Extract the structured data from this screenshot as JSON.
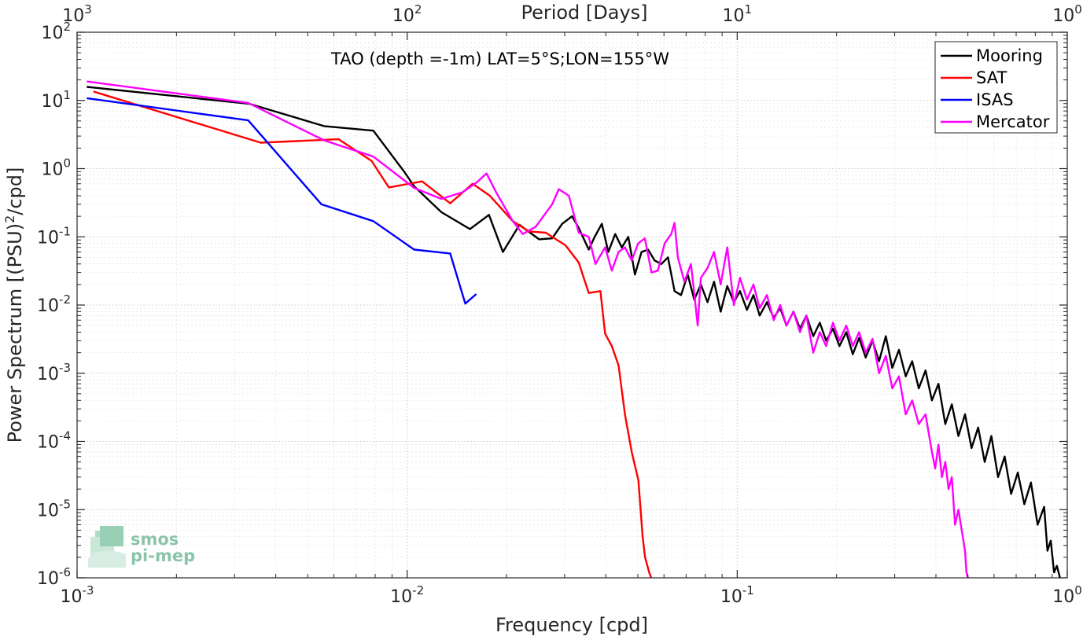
{
  "chart_data": {
    "type": "line",
    "title": "TAO (depth =-1m) LAT=5°S;LON=155°W",
    "xlabel": "Frequency [cpd]",
    "ylabel_prefix": "Power Spectrum [(PSU)",
    "ylabel_sup": "2",
    "ylabel_suffix": "/cpd]",
    "x2label": "Period [Days]",
    "xscale": "log",
    "yscale": "log",
    "xlim": [
      0.001,
      1
    ],
    "ylim": [
      1e-06,
      100
    ],
    "grid": true,
    "legend_position": "top-right",
    "x_ticks": [
      {
        "value": 0.001,
        "base": "10",
        "exp": "-3"
      },
      {
        "value": 0.01,
        "base": "10",
        "exp": "-2"
      },
      {
        "value": 0.1,
        "base": "10",
        "exp": "-1"
      },
      {
        "value": 1,
        "base": "10",
        "exp": "0"
      }
    ],
    "x2_ticks": [
      {
        "value": 0.001,
        "base": "10",
        "exp": "3"
      },
      {
        "value": 0.01,
        "base": "10",
        "exp": "2"
      },
      {
        "value": 0.1,
        "base": "10",
        "exp": "1"
      },
      {
        "value": 1,
        "base": "10",
        "exp": "0"
      }
    ],
    "y_ticks": [
      {
        "value": 1e-06,
        "base": "10",
        "exp": "-6"
      },
      {
        "value": 1e-05,
        "base": "10",
        "exp": "-5"
      },
      {
        "value": 0.0001,
        "base": "10",
        "exp": "-4"
      },
      {
        "value": 0.001,
        "base": "10",
        "exp": "-3"
      },
      {
        "value": 0.01,
        "base": "10",
        "exp": "-2"
      },
      {
        "value": 0.1,
        "base": "10",
        "exp": "-1"
      },
      {
        "value": 1,
        "base": "10",
        "exp": "0"
      },
      {
        "value": 10,
        "base": "10",
        "exp": "1"
      },
      {
        "value": 100,
        "base": "10",
        "exp": "2"
      }
    ],
    "series": [
      {
        "name": "Mooring",
        "color": "#000000",
        "points": [
          [
            0.00107,
            15.8
          ],
          [
            0.00333,
            8.9
          ],
          [
            0.0056,
            4.2
          ],
          [
            0.0079,
            3.6
          ],
          [
            0.0098,
            0.9
          ],
          [
            0.0105,
            0.55
          ],
          [
            0.0127,
            0.23
          ],
          [
            0.0155,
            0.13
          ],
          [
            0.0177,
            0.21
          ],
          [
            0.0195,
            0.06
          ],
          [
            0.0219,
            0.15
          ],
          [
            0.0251,
            0.092
          ],
          [
            0.0275,
            0.095
          ],
          [
            0.0295,
            0.155
          ],
          [
            0.0316,
            0.2
          ],
          [
            0.0331,
            0.135
          ],
          [
            0.0355,
            0.065
          ],
          [
            0.037,
            0.1
          ],
          [
            0.0389,
            0.155
          ],
          [
            0.0407,
            0.06
          ],
          [
            0.0427,
            0.11
          ],
          [
            0.0447,
            0.07
          ],
          [
            0.0468,
            0.1
          ],
          [
            0.049,
            0.028
          ],
          [
            0.0513,
            0.06
          ],
          [
            0.0537,
            0.065
          ],
          [
            0.0562,
            0.045
          ],
          [
            0.0589,
            0.04
          ],
          [
            0.0617,
            0.05
          ],
          [
            0.0646,
            0.016
          ],
          [
            0.0676,
            0.014
          ],
          [
            0.0708,
            0.028
          ],
          [
            0.0741,
            0.012
          ],
          [
            0.0776,
            0.02
          ],
          [
            0.0813,
            0.011
          ],
          [
            0.0851,
            0.022
          ],
          [
            0.0891,
            0.008
          ],
          [
            0.0933,
            0.019
          ],
          [
            0.0977,
            0.011
          ],
          [
            0.102,
            0.016
          ],
          [
            0.107,
            0.0085
          ],
          [
            0.112,
            0.014
          ],
          [
            0.117,
            0.007
          ],
          [
            0.123,
            0.011
          ],
          [
            0.129,
            0.0065
          ],
          [
            0.135,
            0.009
          ],
          [
            0.141,
            0.005
          ],
          [
            0.148,
            0.008
          ],
          [
            0.155,
            0.0045
          ],
          [
            0.162,
            0.007
          ],
          [
            0.17,
            0.0035
          ],
          [
            0.178,
            0.0055
          ],
          [
            0.186,
            0.003
          ],
          [
            0.195,
            0.0045
          ],
          [
            0.204,
            0.0025
          ],
          [
            0.214,
            0.004
          ],
          [
            0.224,
            0.0019
          ],
          [
            0.234,
            0.0033
          ],
          [
            0.245,
            0.0017
          ],
          [
            0.257,
            0.003
          ],
          [
            0.269,
            0.0015
          ],
          [
            0.282,
            0.0035
          ],
          [
            0.295,
            0.0012
          ],
          [
            0.309,
            0.0022
          ],
          [
            0.324,
            0.0009
          ],
          [
            0.339,
            0.0015
          ],
          [
            0.355,
            0.0006
          ],
          [
            0.372,
            0.0011
          ],
          [
            0.389,
            0.0004
          ],
          [
            0.407,
            0.0007
          ],
          [
            0.427,
            0.00018
          ],
          [
            0.447,
            0.00035
          ],
          [
            0.468,
            0.00012
          ],
          [
            0.49,
            0.00025
          ],
          [
            0.513,
            8e-05
          ],
          [
            0.537,
            0.00016
          ],
          [
            0.562,
            5e-05
          ],
          [
            0.589,
            0.00012
          ],
          [
            0.617,
            3e-05
          ],
          [
            0.646,
            6e-05
          ],
          [
            0.676,
            1.7e-05
          ],
          [
            0.708,
            3.5e-05
          ],
          [
            0.741,
            1.2e-05
          ],
          [
            0.776,
            2.5e-05
          ],
          [
            0.813,
            6e-06
          ],
          [
            0.851,
            1.1e-05
          ],
          [
            0.871,
            2.5e-06
          ],
          [
            0.891,
            3.5e-06
          ],
          [
            0.912,
            1.2e-06
          ],
          [
            0.93,
            1.5e-06
          ],
          [
            0.95,
            1e-06
          ]
        ]
      },
      {
        "name": "SAT",
        "color": "#ff0000",
        "points": [
          [
            0.00112,
            13.5
          ],
          [
            0.0036,
            2.4
          ],
          [
            0.0062,
            2.7
          ],
          [
            0.0078,
            1.3
          ],
          [
            0.0088,
            0.53
          ],
          [
            0.0111,
            0.65
          ],
          [
            0.0135,
            0.31
          ],
          [
            0.0158,
            0.6
          ],
          [
            0.0178,
            0.4
          ],
          [
            0.0209,
            0.17
          ],
          [
            0.0234,
            0.12
          ],
          [
            0.0263,
            0.115
          ],
          [
            0.0302,
            0.075
          ],
          [
            0.0331,
            0.042
          ],
          [
            0.0355,
            0.015
          ],
          [
            0.0385,
            0.016
          ],
          [
            0.0398,
            0.0038
          ],
          [
            0.0417,
            0.0025
          ],
          [
            0.0437,
            0.0013
          ],
          [
            0.0457,
            0.00025
          ],
          [
            0.0479,
            7e-05
          ],
          [
            0.0502,
            2.7e-05
          ],
          [
            0.0517,
            4e-06
          ],
          [
            0.0526,
            2e-06
          ],
          [
            0.0541,
            1.2e-06
          ],
          [
            0.0549,
            1e-06
          ]
        ]
      },
      {
        "name": "ISAS",
        "color": "#0000ff",
        "points": [
          [
            0.00107,
            10.8
          ],
          [
            0.0033,
            5.1
          ],
          [
            0.0055,
            0.3
          ],
          [
            0.0079,
            0.17
          ],
          [
            0.0105,
            0.065
          ],
          [
            0.0135,
            0.057
          ],
          [
            0.015,
            0.0105
          ],
          [
            0.0162,
            0.0145
          ]
        ]
      },
      {
        "name": "Mercator",
        "color": "#ff00ff",
        "points": [
          [
            0.00107,
            19
          ],
          [
            0.0033,
            9.2
          ],
          [
            0.0056,
            2.6
          ],
          [
            0.0079,
            1.5
          ],
          [
            0.0105,
            0.52
          ],
          [
            0.0127,
            0.36
          ],
          [
            0.0147,
            0.45
          ],
          [
            0.0162,
            0.62
          ],
          [
            0.0174,
            0.85
          ],
          [
            0.0186,
            0.45
          ],
          [
            0.0209,
            0.17
          ],
          [
            0.0224,
            0.11
          ],
          [
            0.0245,
            0.14
          ],
          [
            0.0275,
            0.3
          ],
          [
            0.0288,
            0.5
          ],
          [
            0.0309,
            0.4
          ],
          [
            0.0331,
            0.115
          ],
          [
            0.0355,
            0.1
          ],
          [
            0.0372,
            0.04
          ],
          [
            0.0398,
            0.07
          ],
          [
            0.0417,
            0.032
          ],
          [
            0.0437,
            0.06
          ],
          [
            0.0457,
            0.07
          ],
          [
            0.0479,
            0.045
          ],
          [
            0.0501,
            0.08
          ],
          [
            0.0525,
            0.095
          ],
          [
            0.055,
            0.03
          ],
          [
            0.0575,
            0.032
          ],
          [
            0.0603,
            0.08
          ],
          [
            0.0631,
            0.11
          ],
          [
            0.0646,
            0.16
          ],
          [
            0.0661,
            0.05
          ],
          [
            0.0692,
            0.022
          ],
          [
            0.0724,
            0.04
          ],
          [
            0.0741,
            0.015
          ],
          [
            0.0759,
            0.005
          ],
          [
            0.0776,
            0.025
          ],
          [
            0.0813,
            0.035
          ],
          [
            0.0851,
            0.06
          ],
          [
            0.0891,
            0.02
          ],
          [
            0.0933,
            0.07
          ],
          [
            0.0977,
            0.01
          ],
          [
            0.102,
            0.025
          ],
          [
            0.107,
            0.012
          ],
          [
            0.112,
            0.02
          ],
          [
            0.117,
            0.009
          ],
          [
            0.123,
            0.014
          ],
          [
            0.129,
            0.006
          ],
          [
            0.135,
            0.01
          ],
          [
            0.141,
            0.005
          ],
          [
            0.148,
            0.008
          ],
          [
            0.155,
            0.004
          ],
          [
            0.162,
            0.007
          ],
          [
            0.17,
            0.002
          ],
          [
            0.178,
            0.004
          ],
          [
            0.186,
            0.0025
          ],
          [
            0.195,
            0.0055
          ],
          [
            0.204,
            0.003
          ],
          [
            0.214,
            0.005
          ],
          [
            0.224,
            0.0025
          ],
          [
            0.234,
            0.004
          ],
          [
            0.245,
            0.002
          ],
          [
            0.257,
            0.0032
          ],
          [
            0.269,
            0.001
          ],
          [
            0.282,
            0.0018
          ],
          [
            0.295,
            0.0006
          ],
          [
            0.309,
            0.0009
          ],
          [
            0.324,
            0.00025
          ],
          [
            0.339,
            0.0004
          ],
          [
            0.355,
            0.00018
          ],
          [
            0.372,
            0.00025
          ],
          [
            0.389,
            7e-05
          ],
          [
            0.398,
            4e-05
          ],
          [
            0.407,
            9e-05
          ],
          [
            0.417,
            3e-05
          ],
          [
            0.427,
            5e-05
          ],
          [
            0.437,
            2e-05
          ],
          [
            0.447,
            3e-05
          ],
          [
            0.457,
            6e-06
          ],
          [
            0.468,
            1e-05
          ],
          [
            0.479,
            5e-06
          ],
          [
            0.49,
            2.5e-06
          ],
          [
            0.495,
            1.2e-06
          ],
          [
            0.5,
            1e-06
          ]
        ]
      }
    ]
  },
  "logo": {
    "line1": "smos",
    "line2": "pi-mep"
  }
}
